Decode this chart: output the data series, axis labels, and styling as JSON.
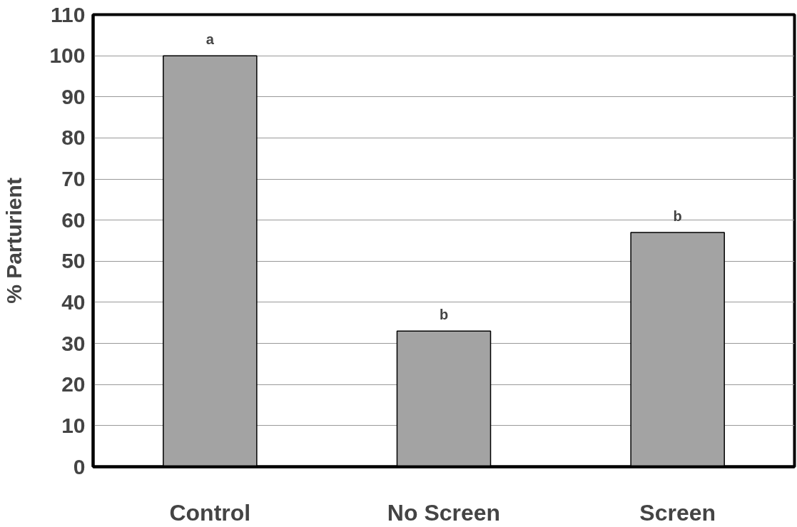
{
  "chart_data": {
    "type": "bar",
    "ylabel": "% Parturient",
    "categories": [
      "Control",
      "No Screen",
      "Screen"
    ],
    "values": [
      100,
      33,
      57
    ],
    "color": "#a3a3a3",
    "ylim": [
      0,
      110
    ],
    "yticks": [
      0,
      10,
      20,
      30,
      40,
      50,
      60,
      70,
      80,
      90,
      100,
      110
    ],
    "grid": "y",
    "annotations": [
      {
        "text": "a",
        "x": "Control",
        "y": 100
      },
      {
        "text": "b",
        "x": "No Screen",
        "y": 33
      },
      {
        "text": "b",
        "x": "Screen",
        "y": 57
      }
    ]
  }
}
